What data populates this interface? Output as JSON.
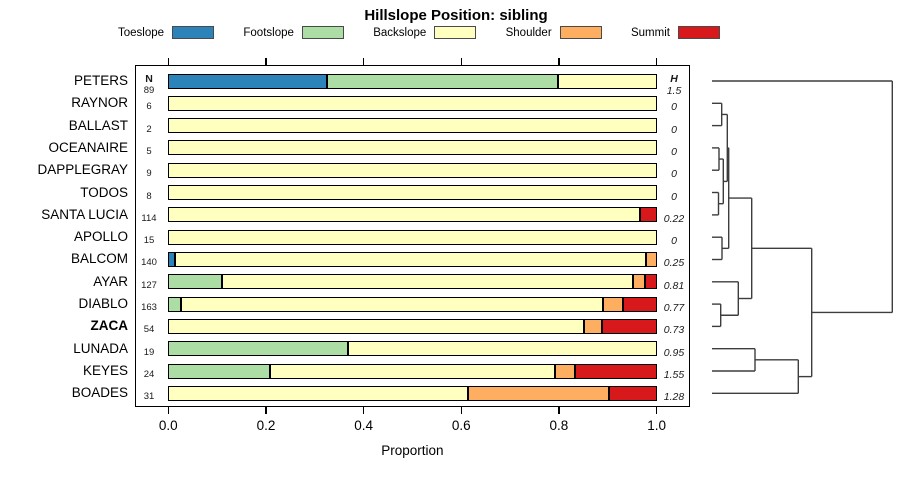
{
  "title": "Hillslope Position: sibling",
  "legend": {
    "items": [
      {
        "label": "Toeslope",
        "color": "#2B83BA"
      },
      {
        "label": "Footslope",
        "color": "#ABDDA4"
      },
      {
        "label": "Backslope",
        "color": "#FFFFBF"
      },
      {
        "label": "Shoulder",
        "color": "#FDAE61"
      },
      {
        "label": "Summit",
        "color": "#D7191C"
      }
    ]
  },
  "columns": {
    "n_header": "N",
    "h_header": "H"
  },
  "x_axis": {
    "label": "Proportion",
    "tick_labels": [
      "0.0",
      "0.2",
      "0.4",
      "0.6",
      "0.8",
      "1.0"
    ],
    "tick_values": [
      0,
      0.2,
      0.4,
      0.6,
      0.8,
      1.0
    ]
  },
  "chart_data": {
    "type": "bar",
    "orientation": "horizontal-stacked",
    "title": "Hillslope Position: sibling",
    "xlabel": "Proportion",
    "xlim": [
      0,
      1
    ],
    "categories": [
      "Toeslope",
      "Footslope",
      "Backslope",
      "Shoulder",
      "Summit"
    ],
    "colors": [
      "#2B83BA",
      "#ABDDA4",
      "#FFFFBF",
      "#FDAE61",
      "#D7191C"
    ],
    "rows": [
      {
        "name": "PETERS",
        "n": 89,
        "h": "1.5",
        "bold": false,
        "values": [
          0.326,
          0.472,
          0.202,
          0,
          0
        ]
      },
      {
        "name": "RAYNOR",
        "n": 6,
        "h": "0",
        "bold": false,
        "values": [
          0,
          0,
          1,
          0,
          0
        ]
      },
      {
        "name": "BALLAST",
        "n": 2,
        "h": "0",
        "bold": false,
        "values": [
          0,
          0,
          1,
          0,
          0
        ]
      },
      {
        "name": "OCEANAIRE",
        "n": 5,
        "h": "0",
        "bold": false,
        "values": [
          0,
          0,
          1,
          0,
          0
        ]
      },
      {
        "name": "DAPPLEGRAY",
        "n": 9,
        "h": "0",
        "bold": false,
        "values": [
          0,
          0,
          1,
          0,
          0
        ]
      },
      {
        "name": "TODOS",
        "n": 8,
        "h": "0",
        "bold": false,
        "values": [
          0,
          0,
          1,
          0,
          0
        ]
      },
      {
        "name": "SANTA LUCIA",
        "n": 114,
        "h": "0.22",
        "bold": false,
        "values": [
          0,
          0,
          0.965,
          0,
          0.035
        ]
      },
      {
        "name": "APOLLO",
        "n": 15,
        "h": "0",
        "bold": false,
        "values": [
          0,
          0,
          1,
          0,
          0
        ]
      },
      {
        "name": "BALCOM",
        "n": 140,
        "h": "0.25",
        "bold": false,
        "values": [
          0.014,
          0,
          0.965,
          0.021,
          0
        ]
      },
      {
        "name": "AYAR",
        "n": 127,
        "h": "0.81",
        "bold": false,
        "values": [
          0,
          0.11,
          0.842,
          0.024,
          0.024
        ]
      },
      {
        "name": "DIABLO",
        "n": 163,
        "h": "0.77",
        "bold": false,
        "values": [
          0,
          0.026,
          0.865,
          0.041,
          0.068
        ]
      },
      {
        "name": "ZACA",
        "n": 54,
        "h": "0.73",
        "bold": true,
        "values": [
          0,
          0,
          0.852,
          0.037,
          0.111
        ]
      },
      {
        "name": "LUNADA",
        "n": 19,
        "h": "0.95",
        "bold": false,
        "values": [
          0,
          0.368,
          0.632,
          0,
          0
        ]
      },
      {
        "name": "KEYES",
        "n": 24,
        "h": "1.55",
        "bold": false,
        "values": [
          0,
          0.208,
          0.583,
          0.042,
          0.167
        ]
      },
      {
        "name": "BOADES",
        "n": 31,
        "h": "1.28",
        "bold": false,
        "values": [
          0,
          0,
          0.613,
          0.29,
          0.097
        ]
      }
    ]
  },
  "dendrogram": {
    "leaf_x": 712,
    "links": [
      {
        "x": 721.7,
        "a": [
          712,
          103.3
        ],
        "b": [
          712,
          125.6
        ]
      },
      {
        "x": 719.0,
        "a": [
          712,
          147.9
        ],
        "b": [
          712,
          170.2
        ]
      },
      {
        "x": 718.5,
        "a": [
          712,
          192.5
        ],
        "b": [
          712,
          214.9
        ]
      },
      {
        "x": 723.3,
        "a": [
          719,
          159.05
        ],
        "b": [
          718.5,
          203.7
        ]
      },
      {
        "x": 727.3,
        "a": [
          721.7,
          114.45
        ],
        "b": [
          723.3,
          181.4
        ]
      },
      {
        "x": 722.0,
        "a": [
          712,
          237.2
        ],
        "b": [
          712,
          259.5
        ]
      },
      {
        "x": 728.7,
        "a": [
          727.3,
          147.9
        ],
        "b": [
          722,
          248.35
        ]
      },
      {
        "x": 720.7,
        "a": [
          712,
          304.1
        ],
        "b": [
          712,
          326.4
        ]
      },
      {
        "x": 738.3,
        "a": [
          712,
          281.8
        ],
        "b": [
          720.7,
          315.25
        ]
      },
      {
        "x": 751.7,
        "a": [
          728.7,
          198.1
        ],
        "b": [
          738.3,
          298.5
        ]
      },
      {
        "x": 755.0,
        "a": [
          712,
          348.7
        ],
        "b": [
          712,
          371.0
        ]
      },
      {
        "x": 798.3,
        "a": [
          755,
          359.85
        ],
        "b": [
          712,
          393.3
        ]
      },
      {
        "x": 811.7,
        "a": [
          751.7,
          248.3
        ],
        "b": [
          798.3,
          376.6
        ]
      },
      {
        "x": 892.3,
        "a": [
          712,
          81.0
        ],
        "b": [
          811.7,
          312.45
        ]
      }
    ]
  }
}
